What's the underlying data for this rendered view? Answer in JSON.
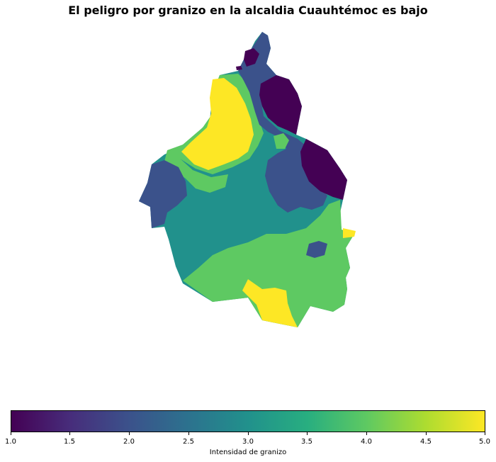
{
  "title": "El peligro por granizo en la alcaldia Cuauhtémoc es bajo",
  "legend": {
    "label": "Intensidad de granizo",
    "min": 1.0,
    "max": 5.0,
    "ticks": [
      "1.0",
      "1.5",
      "2.0",
      "2.5",
      "3.0",
      "3.5",
      "4.0",
      "4.5",
      "5.0"
    ]
  },
  "colors": {
    "v1": "#440154",
    "v2": "#3b528b",
    "v3": "#21918c",
    "v4": "#5ec962",
    "v5": "#fde725"
  }
}
